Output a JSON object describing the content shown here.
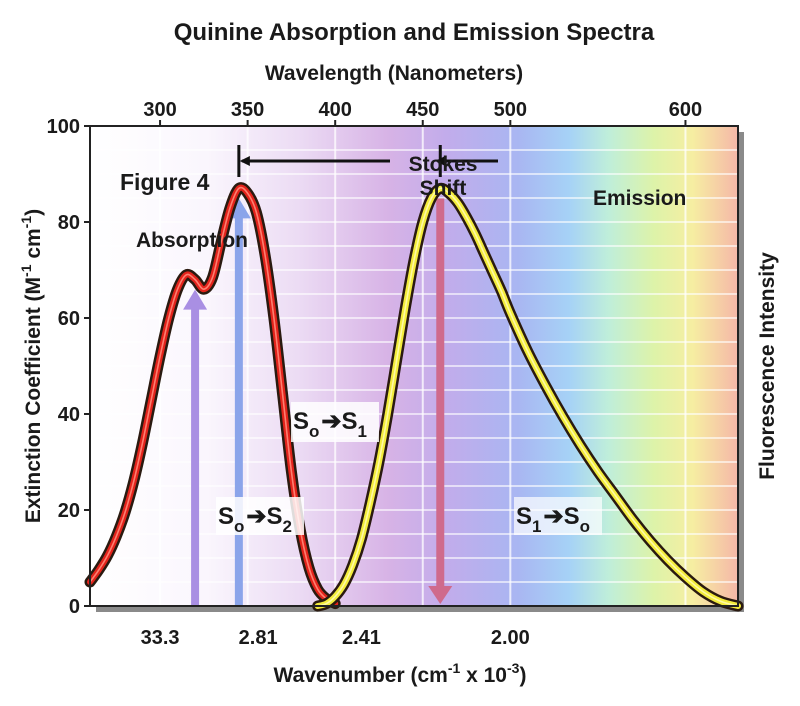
{
  "chart_data": {
    "type": "line",
    "title": "Quinine Absorption and Emission Spectra",
    "top_axis_label": "Wavelength (Nanometers)",
    "top_ticks": [
      "300",
      "350",
      "400",
      "450",
      "500",
      "600"
    ],
    "xlabel": {
      "base": "Wavenumber (cm",
      "exp1": "-1",
      "mid": " x 10",
      "exp2": "-3",
      "end": ")"
    },
    "bottom_ticks": [
      "33.3",
      "2.81",
      "2.41",
      "2.00"
    ],
    "ylabel": {
      "base": "Extinction Coefficient (M",
      "exp1": "-1",
      "mid": " cm",
      "exp2": "-1",
      "end": ")"
    },
    "ylabel_right": "Fluorescence Intensity",
    "ylim": [
      0,
      100
    ],
    "y_ticks": [
      0,
      20,
      40,
      60,
      80,
      100
    ],
    "x_unit": "nm",
    "xlim": [
      260,
      630
    ],
    "figure_label": "Figure 4",
    "series": [
      {
        "name": "Absorption",
        "color": "#e3231b",
        "x": [
          260,
          265,
          270,
          275,
          280,
          285,
          290,
          295,
          300,
          305,
          310,
          315,
          320,
          325,
          330,
          335,
          340,
          345,
          350,
          355,
          360,
          365,
          370,
          375,
          380,
          385,
          390,
          395,
          400
        ],
        "y": [
          5,
          7.5,
          10.5,
          14.5,
          19.5,
          26,
          34,
          43,
          52,
          60,
          66,
          69,
          68,
          66,
          68.5,
          76,
          83,
          87,
          86,
          82,
          73,
          60,
          44,
          28,
          16,
          8,
          3.5,
          1.5,
          0.5
        ]
      },
      {
        "name": "Emission",
        "color": "#f3ec3c",
        "x": [
          390,
          395,
          400,
          405,
          410,
          415,
          420,
          425,
          430,
          435,
          440,
          445,
          450,
          455,
          460,
          465,
          470,
          475,
          480,
          485,
          490,
          495,
          500,
          510,
          520,
          530,
          540,
          550,
          560,
          570,
          580,
          590,
          600,
          610,
          620,
          630
        ],
        "y": [
          0,
          0.5,
          2,
          4.5,
          8.5,
          14,
          21.5,
          30,
          40,
          51,
          62,
          72,
          80,
          85,
          87,
          86,
          84,
          81,
          77.5,
          73.5,
          69.5,
          65.5,
          61,
          53,
          46,
          39.5,
          33.5,
          28,
          23,
          18,
          13.5,
          9.5,
          6,
          3,
          1,
          0
        ]
      }
    ],
    "annotations": {
      "stokes_line1": "Stokes",
      "stokes_line2": "Shift",
      "s0s2": {
        "a": "S",
        "a_sub": "o",
        "b": "S",
        "b_sub": "2"
      },
      "s0s1": {
        "a": "S",
        "a_sub": "o",
        "b": "S",
        "b_sub": "1"
      },
      "s1s0": {
        "a": "S",
        "a_sub": "1",
        "b": "S",
        "b_sub": "o"
      }
    },
    "transitions": [
      {
        "name": "S0-S2",
        "wavelength": 320,
        "color": "#a98fe3"
      },
      {
        "name": "S0-S1",
        "wavelength": 345,
        "color": "#8ba4ea"
      },
      {
        "name": "S1-S0",
        "wavelength": 460,
        "color": "#cf6a8c"
      }
    ],
    "stokes_range": [
      345,
      460
    ]
  }
}
